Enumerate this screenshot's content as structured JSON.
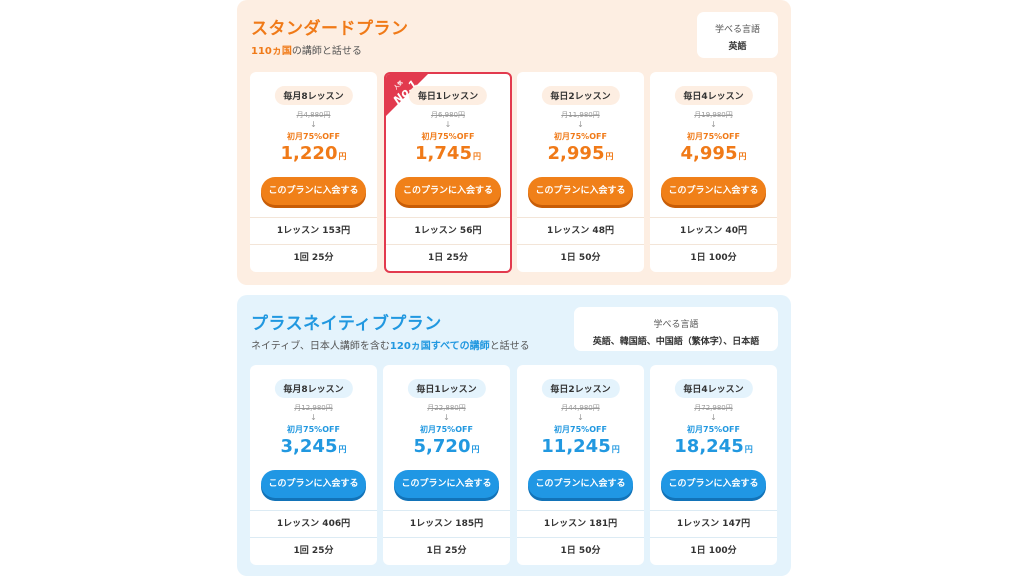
{
  "standard": {
    "title": "スタンダードプラン",
    "subtitle_highlight": "110ヵ国",
    "subtitle_rest": "の講師と話せる",
    "lang_title": "学べる言語",
    "lang_value": "英語",
    "ribbon_small": "人気",
    "ribbon_big": "No.1",
    "cards": [
      {
        "plan": "毎月8レッスン",
        "orig": "月4,880円",
        "arrow": "↓",
        "discount": "初月75%OFF",
        "price": "1,220",
        "yen": "円",
        "button": "このプランに入会する",
        "per_lesson": "1レッスン 153円",
        "duration": "1回 25分"
      },
      {
        "plan": "毎日1レッスン",
        "orig": "月6,980円",
        "arrow": "↓",
        "discount": "初月75%OFF",
        "price": "1,745",
        "yen": "円",
        "button": "このプランに入会する",
        "per_lesson": "1レッスン 56円",
        "duration": "1日 25分"
      },
      {
        "plan": "毎日2レッスン",
        "orig": "月11,980円",
        "arrow": "↓",
        "discount": "初月75%OFF",
        "price": "2,995",
        "yen": "円",
        "button": "このプランに入会する",
        "per_lesson": "1レッスン 48円",
        "duration": "1日 50分"
      },
      {
        "plan": "毎日4レッスン",
        "orig": "月19,980円",
        "arrow": "↓",
        "discount": "初月75%OFF",
        "price": "4,995",
        "yen": "円",
        "button": "このプランに入会する",
        "per_lesson": "1レッスン 40円",
        "duration": "1日 100分"
      }
    ]
  },
  "plus": {
    "title": "プラスネイティブプラン",
    "subtitle_pre": "ネイティブ、日本人講師を含む",
    "subtitle_highlight": "120ヵ国すべての講師",
    "subtitle_rest": "と話せる",
    "lang_title": "学べる言語",
    "lang_value": "英語、韓国語、中国語（繁体字）、日本語",
    "cards": [
      {
        "plan": "毎月8レッスン",
        "orig": "月12,980円",
        "arrow": "↓",
        "discount": "初月75%OFF",
        "price": "3,245",
        "yen": "円",
        "button": "このプランに入会する",
        "per_lesson": "1レッスン 406円",
        "duration": "1回 25分"
      },
      {
        "plan": "毎日1レッスン",
        "orig": "月22,880円",
        "arrow": "↓",
        "discount": "初月75%OFF",
        "price": "5,720",
        "yen": "円",
        "button": "このプランに入会する",
        "per_lesson": "1レッスン 185円",
        "duration": "1日 25分"
      },
      {
        "plan": "毎日2レッスン",
        "orig": "月44,980円",
        "arrow": "↓",
        "discount": "初月75%OFF",
        "price": "11,245",
        "yen": "円",
        "button": "このプランに入会する",
        "per_lesson": "1レッスン 181円",
        "duration": "1日 50分"
      },
      {
        "plan": "毎日4レッスン",
        "orig": "月72,980円",
        "arrow": "↓",
        "discount": "初月75%OFF",
        "price": "18,245",
        "yen": "円",
        "button": "このプランに入会する",
        "per_lesson": "1レッスン 147円",
        "duration": "1日 100分"
      }
    ]
  },
  "colors": {
    "standard_accent": "#f07a18",
    "plus_accent": "#2198e0",
    "best_border": "#e23a4e"
  }
}
